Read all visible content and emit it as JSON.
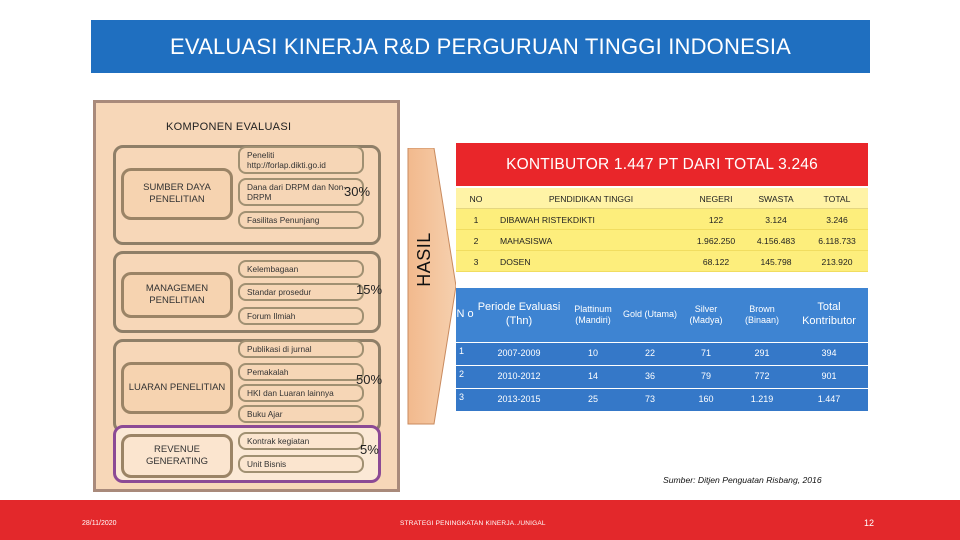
{
  "title": "EVALUASI KINERJA R&D PERGURUAN TINGGI INDONESIA",
  "panel": {
    "title": "KOMPONEN  EVALUASI",
    "groups": [
      {
        "category": "SUMBER DAYA PENELITIAN",
        "items": [
          "Peneliti http://forlap.dikti.go.id",
          "Dana dari DRPM dan Non-DRPM",
          "Fasilitas Penunjang"
        ],
        "percent": "30%"
      },
      {
        "category": "MANAGEMEN PENELITIAN",
        "items": [
          "Kelembagaan",
          "Standar prosedur",
          "Forum Ilmiah"
        ],
        "percent": "15%"
      },
      {
        "category": "LUARAN PENELITIAN",
        "items": [
          "Publikasi di jurnal",
          "Pemakalah",
          "HKI dan Luaran lainnya",
          "Buku Ajar"
        ],
        "percent": "50%"
      },
      {
        "category": "REVENUE GENERATING",
        "items": [
          "Kontrak kegiatan",
          "Unit Bisnis"
        ],
        "percent": "5%"
      }
    ]
  },
  "arrow_label": "HASIL",
  "contributor_banner": "KONTIBUTOR 1.447 PT DARI TOTAL 3.246",
  "table1": {
    "headers": [
      "NO",
      "PENDIDIKAN TINGGI",
      "NEGERI",
      "SWASTA",
      "TOTAL"
    ],
    "rows": [
      [
        "1",
        "DIBAWAH RISTEKDIKTI",
        "122",
        "3.124",
        "3.246"
      ],
      [
        "2",
        "MAHASISWA",
        "1.962.250",
        "4.156.483",
        "6.118.733"
      ],
      [
        "3",
        "DOSEN",
        "68.122",
        "145.798",
        "213.920"
      ]
    ]
  },
  "table2": {
    "headers": [
      "N o",
      "Periode Evaluasi (Thn)",
      "Plattinum (Mandiri)",
      "Gold (Utama)",
      "Silver (Madya)",
      "Brown (Binaan)",
      "Total Kontributor"
    ],
    "rows": [
      [
        "1",
        "2007-2009",
        "10",
        "22",
        "71",
        "291",
        "394"
      ],
      [
        "2",
        "2010-2012",
        "14",
        "36",
        "79",
        "772",
        "901"
      ],
      [
        "3",
        "2013-2015",
        "25",
        "73",
        "160",
        "1.219",
        "1.447"
      ]
    ]
  },
  "source": "Sumber: Ditjen Penguatan Risbang, 2016",
  "footer": {
    "date": "28/11/2020",
    "center": "STRATEGI PENINGKATAN KINERJA../UNIGAL",
    "page": "12"
  },
  "colors": {
    "banner": "#1f6fc0",
    "accent_red": "#e3282b",
    "table1_yellow": "#fdee7c",
    "table2_blue": "#3578c8",
    "panel_bg": "#f7d7b8"
  }
}
